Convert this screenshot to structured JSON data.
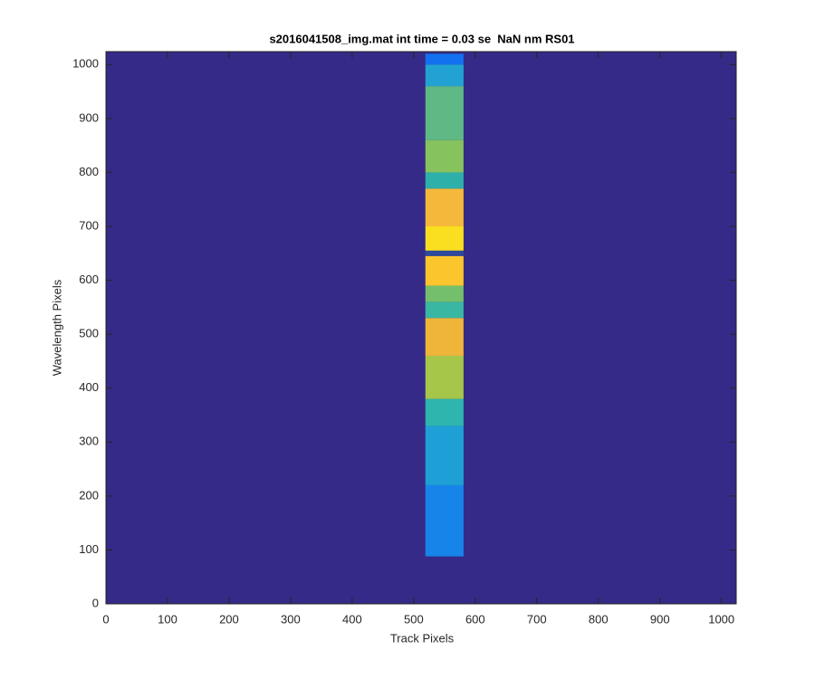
{
  "chart_data": {
    "type": "image",
    "title": "s2016041508_img.mat int time = 0.03 se  NaN nm RS01",
    "xlabel": "Track Pixels",
    "ylabel": "Wavelength Pixels",
    "xlim": [
      0,
      1024
    ],
    "ylim": [
      0,
      1024
    ],
    "xticks": [
      0,
      100,
      200,
      300,
      400,
      500,
      600,
      700,
      800,
      900,
      1000
    ],
    "yticks": [
      0,
      100,
      200,
      300,
      400,
      500,
      600,
      700,
      800,
      900,
      1000
    ],
    "background": "#352a87",
    "stripe_x": [
      519,
      581
    ],
    "bands": [
      {
        "y": [
          88,
          220
        ],
        "color": "#1784ea"
      },
      {
        "y": [
          220,
          330
        ],
        "color": "#1ea0d6"
      },
      {
        "y": [
          330,
          380
        ],
        "color": "#2db5ae"
      },
      {
        "y": [
          380,
          460
        ],
        "color": "#a6c649"
      },
      {
        "y": [
          460,
          530
        ],
        "color": "#efb53a"
      },
      {
        "y": [
          530,
          560
        ],
        "color": "#3ab7a3"
      },
      {
        "y": [
          560,
          590
        ],
        "color": "#74bf6c"
      },
      {
        "y": [
          590,
          645
        ],
        "color": "#fbc52e"
      },
      {
        "y": [
          645,
          655
        ],
        "color": "#2e4a9a"
      },
      {
        "y": [
          655,
          700
        ],
        "color": "#f9df20"
      },
      {
        "y": [
          700,
          770
        ],
        "color": "#f4b93a"
      },
      {
        "y": [
          770,
          800
        ],
        "color": "#2eb0aa"
      },
      {
        "y": [
          800,
          860
        ],
        "color": "#86c25e"
      },
      {
        "y": [
          860,
          960
        ],
        "color": "#5fb985"
      },
      {
        "y": [
          960,
          1000
        ],
        "color": "#22a2d2"
      },
      {
        "y": [
          1000,
          1020
        ],
        "color": "#1271ef"
      }
    ]
  }
}
